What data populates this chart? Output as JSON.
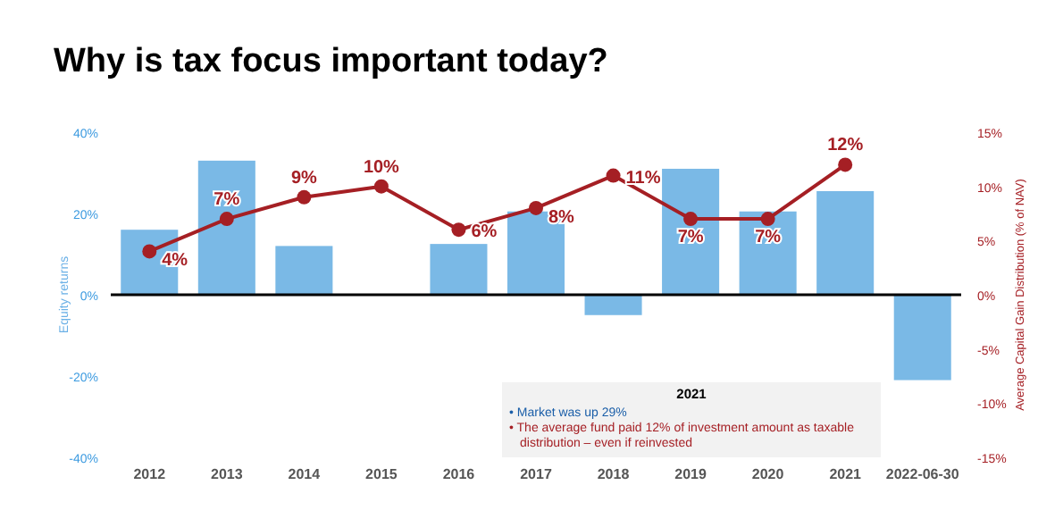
{
  "chart_data": {
    "type": "bar",
    "title": "Why is tax focus important today?",
    "categories": [
      "2012",
      "2013",
      "2014",
      "2015",
      "2016",
      "2017",
      "2018",
      "2019",
      "2020",
      "2021",
      "2022-06-30"
    ],
    "series": [
      {
        "color": "#7ab9e6",
        "values": [
          16,
          33,
          12,
          null,
          12.5,
          20.5,
          -5,
          31,
          20.5,
          25.5,
          -21
        ]
      },
      {
        "type": "line",
        "axis": "y2",
        "color": "#a51f24",
        "marker": "circle",
        "values": [
          4,
          7,
          9,
          10,
          6,
          8,
          11,
          7,
          7,
          12,
          null
        ],
        "value_labels": [
          "4%",
          "7%",
          "9%",
          "10%",
          "6%",
          "8%",
          "11%",
          "7%",
          "7%",
          "12%",
          null
        ]
      }
    ],
    "ylabel": "Equity returns",
    "y2label": "Average Capital Gain Distribution (% of NAV)",
    "ylim": [
      -40,
      40
    ],
    "yticks": [
      {
        "value": -40,
        "label": "-40%"
      },
      {
        "value": -20,
        "label": "-20%"
      },
      {
        "value": 0,
        "label": "0%"
      },
      {
        "value": 20,
        "label": "20%"
      },
      {
        "value": 40,
        "label": "40%"
      }
    ],
    "y2lim": [
      -15,
      15
    ],
    "y2ticks": [
      {
        "value": -15,
        "label": "-15%"
      },
      {
        "value": -10,
        "label": "-10%"
      },
      {
        "value": -5,
        "label": "-5%"
      },
      {
        "value": 0,
        "label": "0%"
      },
      {
        "value": 5,
        "label": "5%"
      },
      {
        "value": 10,
        "label": "10%"
      },
      {
        "value": 15,
        "label": "15%"
      }
    ],
    "annotations": [
      "2021",
      "• Market was up 29%",
      "• The average fund paid 12% of investment amount as taxable distribution – even if reinvested"
    ],
    "ref_lines": [
      {
        "axis": "y",
        "value": 0,
        "color": "#000000"
      }
    ]
  }
}
